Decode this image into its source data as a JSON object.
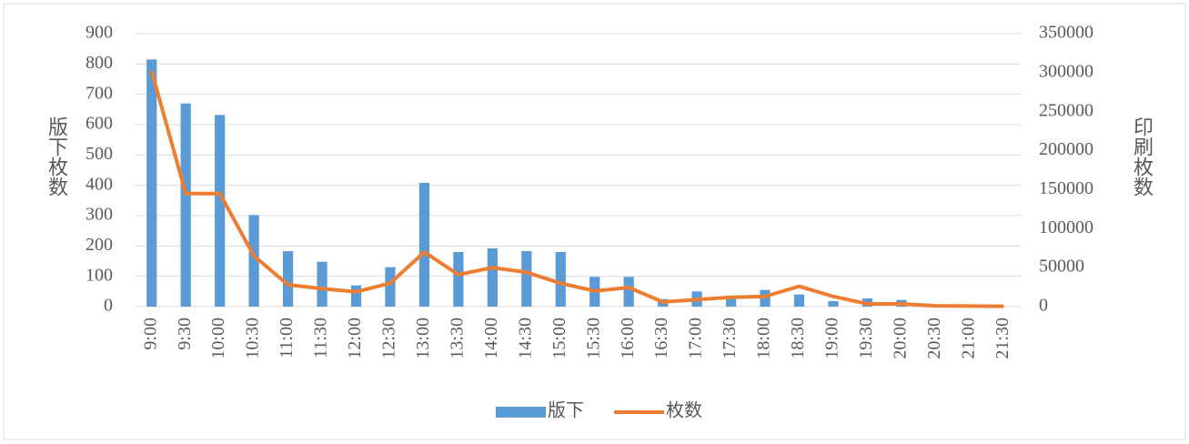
{
  "chart_data": {
    "type": "bar_line",
    "y_label": "版下枚数",
    "y2_label": "印刷枚数",
    "categories": [
      "9:00",
      "9:30",
      "10:00",
      "10:30",
      "11:00",
      "11:30",
      "12:00",
      "12:30",
      "13:00",
      "13:30",
      "14:00",
      "14:30",
      "15:00",
      "15:30",
      "16:00",
      "16:30",
      "17:00",
      "17:30",
      "18:00",
      "18:30",
      "19:00",
      "19:30",
      "20:00",
      "20:30",
      "21:00",
      "21:30"
    ],
    "series": [
      {
        "name": "版下",
        "type": "bar",
        "color": "#5b9bd5",
        "axis": "y",
        "values": [
          815,
          670,
          632,
          302,
          183,
          148,
          70,
          130,
          408,
          180,
          192,
          183,
          180,
          98,
          98,
          25,
          50,
          25,
          55,
          40,
          18,
          27,
          22,
          0,
          0,
          0
        ]
      },
      {
        "name": "枚数",
        "type": "line",
        "color": "#ed7d31",
        "axis": "y2",
        "values": [
          302000,
          145000,
          145000,
          65000,
          28000,
          23000,
          19000,
          30000,
          70000,
          41000,
          50000,
          44000,
          30000,
          20000,
          24500,
          6000,
          9000,
          12000,
          13000,
          26000,
          13000,
          3500,
          3500,
          1000,
          800,
          500
        ]
      }
    ],
    "ylim": [
      0,
      900
    ],
    "yticks": [
      0,
      100,
      200,
      300,
      400,
      500,
      600,
      700,
      800,
      900
    ],
    "y2lim": [
      0,
      350000
    ],
    "y2ticks": [
      0,
      50000,
      100000,
      150000,
      200000,
      250000,
      300000,
      350000
    ],
    "grid": true,
    "legend": "bottom"
  }
}
